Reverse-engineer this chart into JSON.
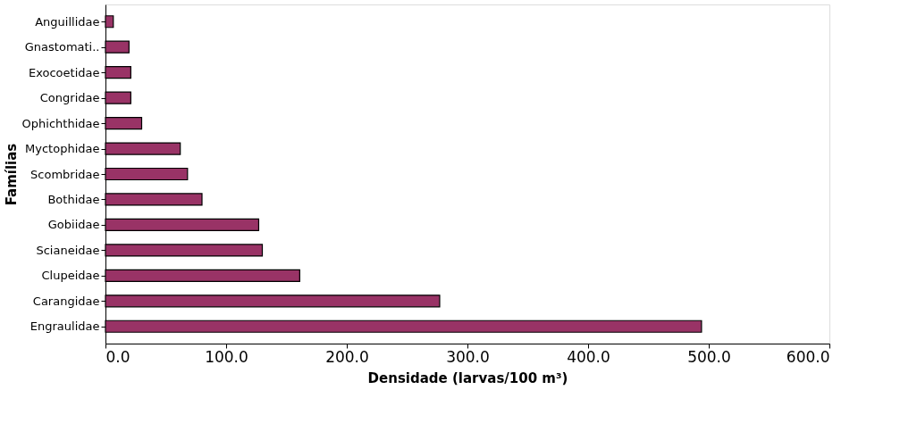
{
  "chart_data": {
    "type": "bar",
    "orientation": "horizontal",
    "xlabel": "Densidade (larvas/100 m³)",
    "ylabel": "Famílias",
    "categories": [
      "Anguillidae",
      "Gnastomati..",
      "Exocoetidae",
      "Congridae",
      "Ophichthidae",
      "Myctophidae",
      "Scombridae",
      "Bothidae",
      "Gobiidae",
      "Scianeidae",
      "Clupeidae",
      "Carangidae",
      "Engraulidae"
    ],
    "values": [
      6.5,
      19.5,
      21,
      21,
      30,
      62,
      68,
      80,
      127,
      130,
      161,
      277,
      494
    ],
    "color": "#993366",
    "xlim": [
      0,
      600
    ],
    "xticks": [
      {
        "value": 0,
        "label": "0.0"
      },
      {
        "value": 100,
        "label": "100.0"
      },
      {
        "value": 200,
        "label": "200.0"
      },
      {
        "value": 300,
        "label": "300.0"
      },
      {
        "value": 400,
        "label": "400.0"
      },
      {
        "value": 500,
        "label": "500.0"
      },
      {
        "value": 600,
        "label": "600.0"
      }
    ],
    "grid": false
  }
}
